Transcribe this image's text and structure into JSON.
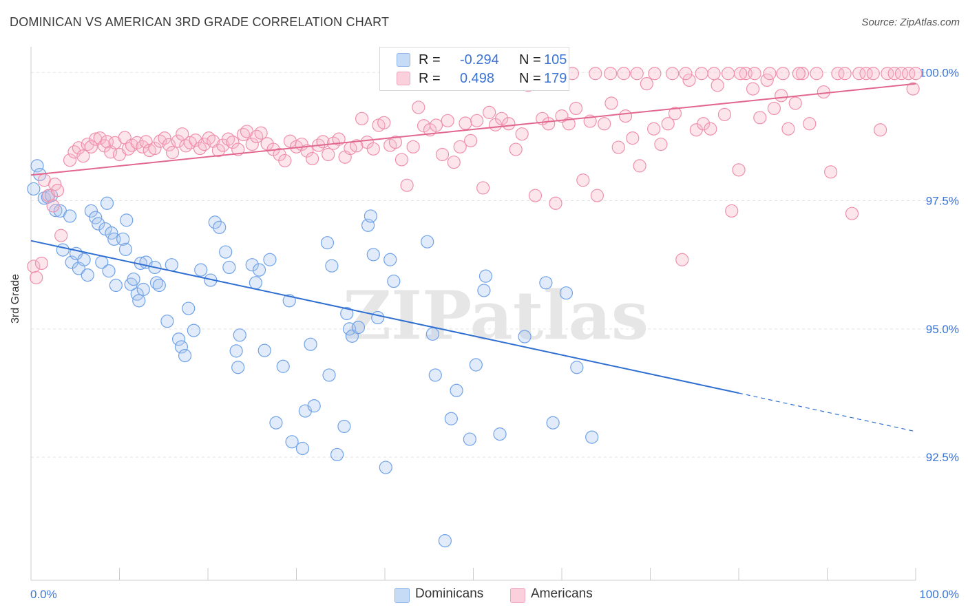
{
  "title": "DOMINICAN VS AMERICAN 3RD GRADE CORRELATION CHART",
  "source": "Source: ZipAtlas.com",
  "watermark": "ZIPatlas",
  "legend_top": {
    "rows": [
      {
        "r_label": "R =",
        "r_value": "-0.294",
        "n_label": "N =",
        "n_value": "105",
        "color": "#a9c6ef"
      },
      {
        "r_label": "R =",
        "r_value": "0.498",
        "n_label": "N =",
        "n_value": "179",
        "color": "#f5b8c9"
      }
    ]
  },
  "legend_bottom": [
    {
      "label": "Dominicans",
      "color": "#a9c6ef"
    },
    {
      "label": "Americans",
      "color": "#f5b8c9"
    }
  ],
  "chart_data": {
    "type": "scatter",
    "title": "DOMINICAN VS AMERICAN 3RD GRADE CORRELATION CHART",
    "xlabel": "",
    "ylabel": "3rd Grade",
    "xlim": [
      0,
      100
    ],
    "ylim": [
      90.1,
      100.5
    ],
    "x_tick_labels": [
      "0.0%",
      "100.0%"
    ],
    "y_ticks": [
      {
        "value": 100.0,
        "label": "100.0%"
      },
      {
        "value": 97.5,
        "label": "97.5%"
      },
      {
        "value": 95.0,
        "label": "95.0%"
      },
      {
        "value": 92.5,
        "label": "92.5%"
      }
    ],
    "grid": "horizontal dashed",
    "series": [
      {
        "name": "Dominicans",
        "color": "#6fa2e8",
        "trend": {
          "x": [
            0,
            80,
            100
          ],
          "y": [
            96.72,
            93.75,
            93.0
          ],
          "solid_until": 80,
          "color": "#2f6fd2"
        },
        "points": [
          [
            0.3,
            97.73
          ],
          [
            0.7,
            98.18
          ],
          [
            1.0,
            98.01
          ],
          [
            1.5,
            97.55
          ],
          [
            1.9,
            97.57
          ],
          [
            2.3,
            97.6
          ],
          [
            2.8,
            97.31
          ],
          [
            3.3,
            97.3
          ],
          [
            3.6,
            96.54
          ],
          [
            4.4,
            97.2
          ],
          [
            4.6,
            96.3
          ],
          [
            5.1,
            96.47
          ],
          [
            5.4,
            96.18
          ],
          [
            6.0,
            96.35
          ],
          [
            6.4,
            96.05
          ],
          [
            6.8,
            97.3
          ],
          [
            7.3,
            97.17
          ],
          [
            7.6,
            97.05
          ],
          [
            8.0,
            96.3
          ],
          [
            8.4,
            96.95
          ],
          [
            8.6,
            97.45
          ],
          [
            8.8,
            96.13
          ],
          [
            9.1,
            96.87
          ],
          [
            9.4,
            96.75
          ],
          [
            9.6,
            95.85
          ],
          [
            10.4,
            96.75
          ],
          [
            10.7,
            96.55
          ],
          [
            10.8,
            97.12
          ],
          [
            11.3,
            95.87
          ],
          [
            11.6,
            95.97
          ],
          [
            12.0,
            95.68
          ],
          [
            12.2,
            95.55
          ],
          [
            12.4,
            96.28
          ],
          [
            12.7,
            95.77
          ],
          [
            13.0,
            96.3
          ],
          [
            14.0,
            96.2
          ],
          [
            14.2,
            95.9
          ],
          [
            14.5,
            95.85
          ],
          [
            15.4,
            95.15
          ],
          [
            15.9,
            96.25
          ],
          [
            16.7,
            94.8
          ],
          [
            17.0,
            94.65
          ],
          [
            17.4,
            94.48
          ],
          [
            17.8,
            95.4
          ],
          [
            18.4,
            94.97
          ],
          [
            19.2,
            96.15
          ],
          [
            20.3,
            95.95
          ],
          [
            20.8,
            97.08
          ],
          [
            21.3,
            96.98
          ],
          [
            22.0,
            96.5
          ],
          [
            22.4,
            96.2
          ],
          [
            23.2,
            94.57
          ],
          [
            23.4,
            94.25
          ],
          [
            23.6,
            94.88
          ],
          [
            25.0,
            96.25
          ],
          [
            25.4,
            95.9
          ],
          [
            25.8,
            96.15
          ],
          [
            26.4,
            94.58
          ],
          [
            27.0,
            96.35
          ],
          [
            27.7,
            93.17
          ],
          [
            28.5,
            94.27
          ],
          [
            29.2,
            95.55
          ],
          [
            29.5,
            92.8
          ],
          [
            30.7,
            92.67
          ],
          [
            31.0,
            93.4
          ],
          [
            31.6,
            94.7
          ],
          [
            32.0,
            93.5
          ],
          [
            33.5,
            96.68
          ],
          [
            33.7,
            94.1
          ],
          [
            34.0,
            96.23
          ],
          [
            34.6,
            92.55
          ],
          [
            35.4,
            93.1
          ],
          [
            35.7,
            95.3
          ],
          [
            36.0,
            95.0
          ],
          [
            36.3,
            94.86
          ],
          [
            37.0,
            95.03
          ],
          [
            38.1,
            97.02
          ],
          [
            38.4,
            97.2
          ],
          [
            38.7,
            96.45
          ],
          [
            39.2,
            95.22
          ],
          [
            40.1,
            92.3
          ],
          [
            40.6,
            96.35
          ],
          [
            41.0,
            95.93
          ],
          [
            44.8,
            96.7
          ],
          [
            45.4,
            94.9
          ],
          [
            45.7,
            94.1
          ],
          [
            46.8,
            90.87
          ],
          [
            47.5,
            93.25
          ],
          [
            48.1,
            93.8
          ],
          [
            49.6,
            92.85
          ],
          [
            50.3,
            94.3
          ],
          [
            51.2,
            95.75
          ],
          [
            51.4,
            96.03
          ],
          [
            53.0,
            92.95
          ],
          [
            55.8,
            94.85
          ],
          [
            58.2,
            95.9
          ],
          [
            59.0,
            93.17
          ],
          [
            60.5,
            95.7
          ],
          [
            61.7,
            94.25
          ],
          [
            63.4,
            92.89
          ]
        ]
      },
      {
        "name": "Americans",
        "color": "#ef8fab",
        "trend": {
          "x": [
            0,
            100
          ],
          "y": [
            98.0,
            99.78
          ],
          "color": "#e2678f"
        },
        "points": [
          [
            0.3,
            96.22
          ],
          [
            0.6,
            96.0
          ],
          [
            1.2,
            96.28
          ],
          [
            1.5,
            97.9
          ],
          [
            2.0,
            97.6
          ],
          [
            2.5,
            97.4
          ],
          [
            2.7,
            97.82
          ],
          [
            3.0,
            97.7
          ],
          [
            3.4,
            96.82
          ],
          [
            4.4,
            98.29
          ],
          [
            4.9,
            98.45
          ],
          [
            5.4,
            98.53
          ],
          [
            5.9,
            98.37
          ],
          [
            6.4,
            98.6
          ],
          [
            6.8,
            98.55
          ],
          [
            7.3,
            98.7
          ],
          [
            7.8,
            98.72
          ],
          [
            8.3,
            98.57
          ],
          [
            8.6,
            98.65
          ],
          [
            9.0,
            98.45
          ],
          [
            9.5,
            98.63
          ],
          [
            10.0,
            98.4
          ],
          [
            10.6,
            98.73
          ],
          [
            11.0,
            98.51
          ],
          [
            11.4,
            98.58
          ],
          [
            12.0,
            98.63
          ],
          [
            12.6,
            98.55
          ],
          [
            13.0,
            98.65
          ],
          [
            13.4,
            98.48
          ],
          [
            14.0,
            98.52
          ],
          [
            14.6,
            98.66
          ],
          [
            15.1,
            98.72
          ],
          [
            15.6,
            98.59
          ],
          [
            16.0,
            98.44
          ],
          [
            16.6,
            98.66
          ],
          [
            17.1,
            98.8
          ],
          [
            17.5,
            98.57
          ],
          [
            18.0,
            98.63
          ],
          [
            18.6,
            98.68
          ],
          [
            19.1,
            98.52
          ],
          [
            19.6,
            98.6
          ],
          [
            20.1,
            98.72
          ],
          [
            20.6,
            98.66
          ],
          [
            21.2,
            98.48
          ],
          [
            21.7,
            98.58
          ],
          [
            22.3,
            98.7
          ],
          [
            22.8,
            98.64
          ],
          [
            23.4,
            98.5
          ],
          [
            24.0,
            98.79
          ],
          [
            24.4,
            98.85
          ],
          [
            25.0,
            98.6
          ],
          [
            25.5,
            98.75
          ],
          [
            26.0,
            98.82
          ],
          [
            26.7,
            98.61
          ],
          [
            27.4,
            98.5
          ],
          [
            28.1,
            98.4
          ],
          [
            28.7,
            98.28
          ],
          [
            29.3,
            98.66
          ],
          [
            30.0,
            98.55
          ],
          [
            30.6,
            98.6
          ],
          [
            31.2,
            98.47
          ],
          [
            31.8,
            98.32
          ],
          [
            32.5,
            98.58
          ],
          [
            33.0,
            98.65
          ],
          [
            33.6,
            98.4
          ],
          [
            34.2,
            98.62
          ],
          [
            34.8,
            98.7
          ],
          [
            35.5,
            98.35
          ],
          [
            36.1,
            98.52
          ],
          [
            36.8,
            98.57
          ],
          [
            37.4,
            99.1
          ],
          [
            38.0,
            98.64
          ],
          [
            38.7,
            98.51
          ],
          [
            39.3,
            98.97
          ],
          [
            39.9,
            99.02
          ],
          [
            40.6,
            98.58
          ],
          [
            41.2,
            98.64
          ],
          [
            41.9,
            98.3
          ],
          [
            42.5,
            97.8
          ],
          [
            43.2,
            98.55
          ],
          [
            43.8,
            99.32
          ],
          [
            44.4,
            98.96
          ],
          [
            45.1,
            98.88
          ],
          [
            45.8,
            98.97
          ],
          [
            46.5,
            98.4
          ],
          [
            47.1,
            99.06
          ],
          [
            47.8,
            98.25
          ],
          [
            48.5,
            98.55
          ],
          [
            49.1,
            99.01
          ],
          [
            49.7,
            98.67
          ],
          [
            50.4,
            99.06
          ],
          [
            51.1,
            97.75
          ],
          [
            51.8,
            99.22
          ],
          [
            52.5,
            98.98
          ],
          [
            53.2,
            99.1
          ],
          [
            54.0,
            99.0
          ],
          [
            54.8,
            98.5
          ],
          [
            55.5,
            98.8
          ],
          [
            56.2,
            99.75
          ],
          [
            57.0,
            97.6
          ],
          [
            57.8,
            99.1
          ],
          [
            58.5,
            99.0
          ],
          [
            59.3,
            97.45
          ],
          [
            60.0,
            99.15
          ],
          [
            60.8,
            99.0
          ],
          [
            61.6,
            99.3
          ],
          [
            62.4,
            97.9
          ],
          [
            63.2,
            99.05
          ],
          [
            64.0,
            97.6
          ],
          [
            64.8,
            99.0
          ],
          [
            65.6,
            99.4
          ],
          [
            66.4,
            98.54
          ],
          [
            67.2,
            99.15
          ],
          [
            68.0,
            98.72
          ],
          [
            68.8,
            98.18
          ],
          [
            69.6,
            99.78
          ],
          [
            70.4,
            98.9
          ],
          [
            71.2,
            98.6
          ],
          [
            72.0,
            99.0
          ],
          [
            72.8,
            99.2
          ],
          [
            73.6,
            96.35
          ],
          [
            74.4,
            99.85
          ],
          [
            75.2,
            98.88
          ],
          [
            76.0,
            99.0
          ],
          [
            76.8,
            98.9
          ],
          [
            77.6,
            99.75
          ],
          [
            78.4,
            99.18
          ],
          [
            79.2,
            97.3
          ],
          [
            80.0,
            98.1
          ],
          [
            80.8,
            99.98
          ],
          [
            81.6,
            99.68
          ],
          [
            82.4,
            99.12
          ],
          [
            83.2,
            99.85
          ],
          [
            84.0,
            99.3
          ],
          [
            84.8,
            99.55
          ],
          [
            85.6,
            98.9
          ],
          [
            86.4,
            99.4
          ],
          [
            87.2,
            99.98
          ],
          [
            88.0,
            99.0
          ],
          [
            88.8,
            99.98
          ],
          [
            89.6,
            99.62
          ],
          [
            90.4,
            98.06
          ],
          [
            91.2,
            99.98
          ],
          [
            92.0,
            99.98
          ],
          [
            92.8,
            97.25
          ],
          [
            93.6,
            99.98
          ],
          [
            94.4,
            99.98
          ],
          [
            95.2,
            99.98
          ],
          [
            96.0,
            98.88
          ],
          [
            96.8,
            99.98
          ],
          [
            97.6,
            99.98
          ],
          [
            98.4,
            99.98
          ],
          [
            99.2,
            99.98
          ],
          [
            99.7,
            99.68
          ],
          [
            100.0,
            99.98
          ],
          [
            57.5,
            99.98
          ],
          [
            59.4,
            99.98
          ],
          [
            61.2,
            99.98
          ],
          [
            63.8,
            99.98
          ],
          [
            65.5,
            99.98
          ],
          [
            67.0,
            99.98
          ],
          [
            68.5,
            99.98
          ],
          [
            70.5,
            99.98
          ],
          [
            72.5,
            99.98
          ],
          [
            74.0,
            99.98
          ],
          [
            75.8,
            99.98
          ],
          [
            77.2,
            99.98
          ],
          [
            78.8,
            99.98
          ],
          [
            80.2,
            99.98
          ],
          [
            81.8,
            99.98
          ],
          [
            83.5,
            99.98
          ],
          [
            85.0,
            99.98
          ],
          [
            86.8,
            99.98
          ]
        ]
      }
    ]
  }
}
